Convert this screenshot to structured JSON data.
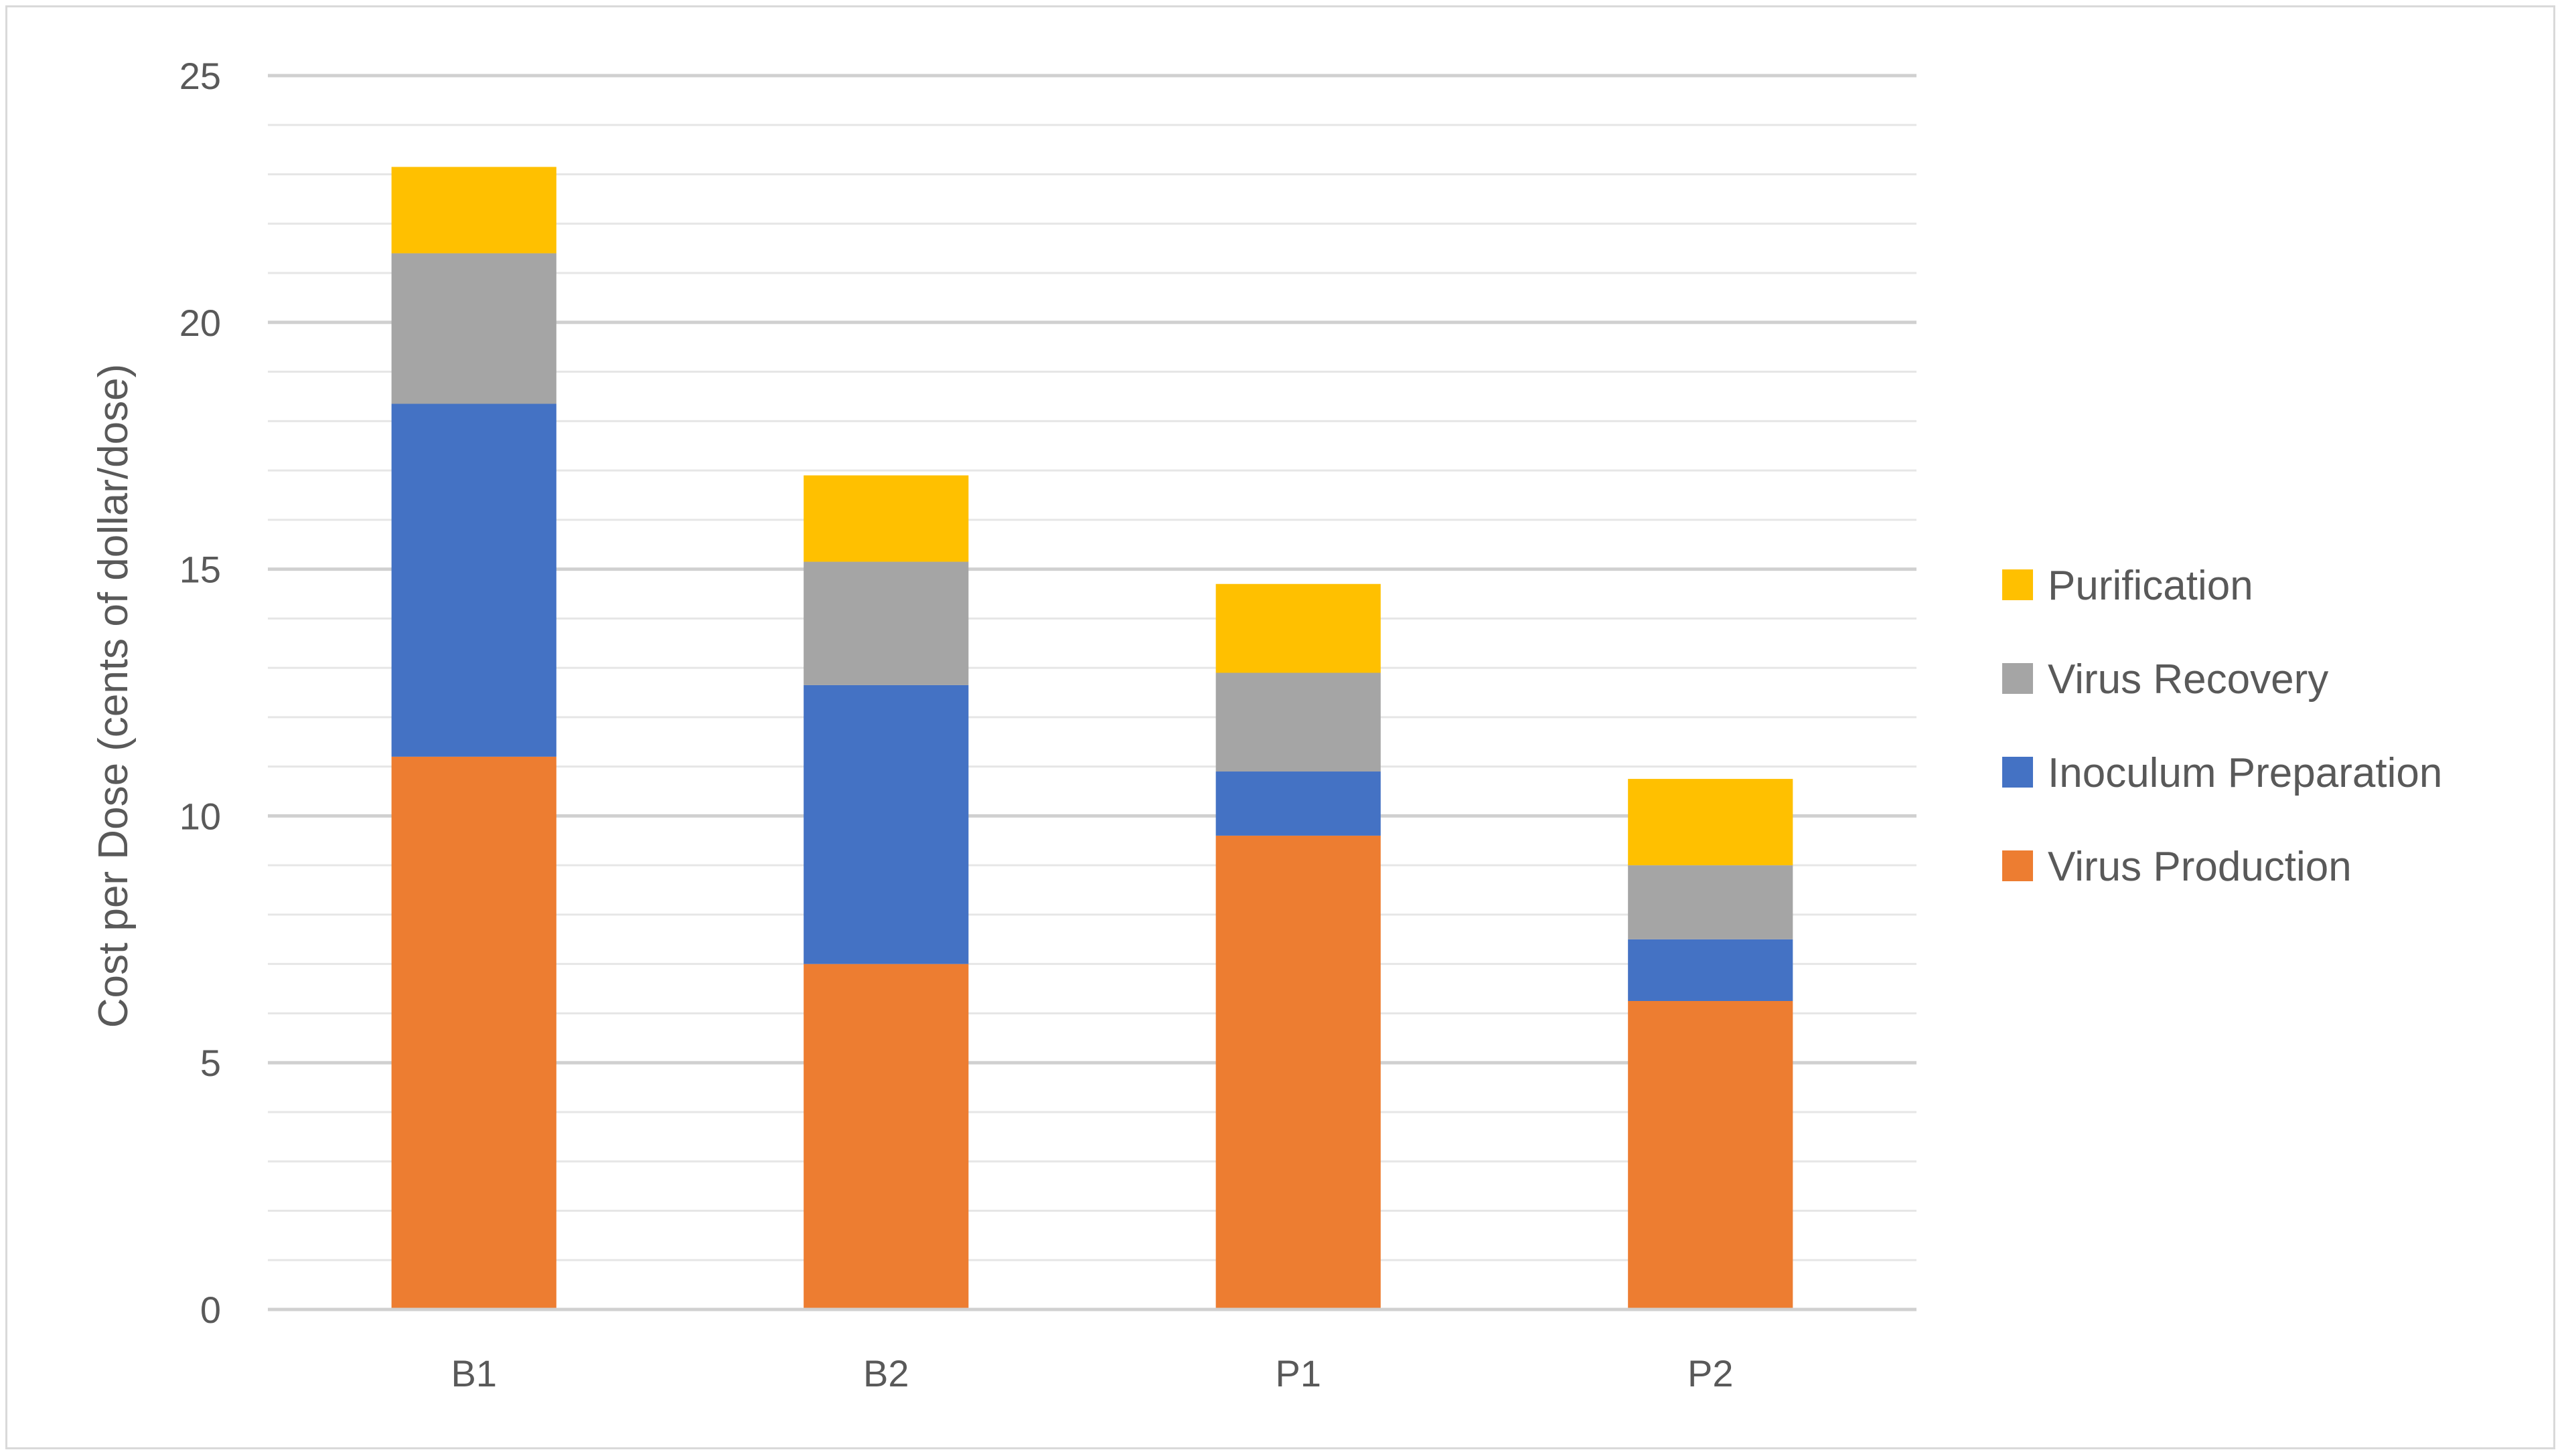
{
  "chart_data": {
    "type": "bar",
    "stacked": true,
    "title": "",
    "xlabel": "",
    "ylabel": "Cost per Dose (cents of dollar/dose)",
    "ylim": [
      0,
      25
    ],
    "y_ticks": [
      "0",
      "5",
      "10",
      "15",
      "20",
      "25"
    ],
    "grid": "horizontal major and minor",
    "legend_placement": "right",
    "categories": [
      "B1",
      "B2",
      "P1",
      "P2"
    ],
    "series": [
      {
        "name": "Virus Production",
        "color": "#ED7D31",
        "values": [
          11.2,
          7.0,
          9.6,
          6.25
        ]
      },
      {
        "name": "Inoculum Preparation",
        "color": "#4472C4",
        "values": [
          7.15,
          5.65,
          1.3,
          1.25
        ]
      },
      {
        "name": "Virus Recovery",
        "color": "#A5A5A5",
        "values": [
          3.05,
          2.5,
          2.0,
          1.5
        ]
      },
      {
        "name": "Purification",
        "color": "#FFC000",
        "values": [
          1.75,
          1.75,
          1.8,
          1.75
        ]
      }
    ],
    "legend_order": [
      "Purification",
      "Virus Recovery",
      "Inoculum Preparation",
      "Virus Production"
    ]
  }
}
